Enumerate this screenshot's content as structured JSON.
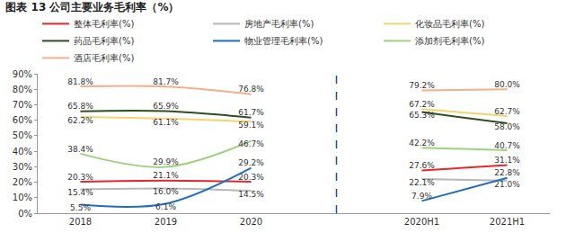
{
  "chart_data": {
    "type": "line",
    "title": "图表 13 公司主要业务毛利率（%）",
    "categories": [
      "2018",
      "2019",
      "2020",
      null,
      "2020H1",
      "2021H1"
    ],
    "series": [
      {
        "name": "整体毛利率(%)",
        "color": "#e8262b",
        "values": [
          20.3,
          21.1,
          20.3,
          null,
          27.6,
          31.1
        ],
        "value_labels": [
          "20.3%",
          "21.1%",
          "20.3%",
          null,
          "27.6%",
          "31.1%"
        ]
      },
      {
        "name": "房地产毛利率(%)",
        "color": "#b8b8b8",
        "values": [
          15.4,
          16.0,
          14.5,
          null,
          22.1,
          21.0
        ],
        "value_labels": [
          "15.4%",
          "16.0%",
          "14.5%",
          null,
          "22.1%",
          "21.0%"
        ]
      },
      {
        "name": "化妆品毛利率(%)",
        "color": "#f5d36e",
        "values": [
          62.2,
          61.1,
          59.1,
          null,
          67.2,
          62.7
        ],
        "value_labels": [
          "62.2%",
          "61.1%",
          "59.1%",
          null,
          "67.2%",
          "62.7%"
        ]
      },
      {
        "name": "药品毛利率(%)",
        "color": "#2e4f20",
        "values": [
          65.8,
          65.9,
          61.7,
          null,
          65.3,
          58.0
        ],
        "value_labels": [
          "65.8%",
          "65.9%",
          "61.7%",
          null,
          "65.3%",
          "58.0%"
        ]
      },
      {
        "name": "物业管理毛利率(%)",
        "color": "#1f6fbf",
        "values": [
          5.5,
          6.1,
          29.2,
          null,
          7.9,
          22.8
        ],
        "value_labels": [
          "5.5%",
          "6.1%",
          "29.2%",
          null,
          "7.9%",
          "22.8%"
        ]
      },
      {
        "name": "添加剂毛利率(%)",
        "color": "#9dd27f",
        "values": [
          38.4,
          29.9,
          46.7,
          null,
          42.2,
          40.7
        ],
        "value_labels": [
          "38.4%",
          "29.9%",
          "46.7%",
          null,
          "42.2%",
          "40.7%"
        ]
      },
      {
        "name": "酒店毛利率(%)",
        "color": "#f4b08a",
        "values": [
          81.8,
          81.7,
          76.8,
          null,
          79.2,
          80.0
        ],
        "value_labels": [
          "81.8%",
          "81.7%",
          "76.8%",
          null,
          "79.2%",
          "80.0%"
        ]
      }
    ],
    "ylim": [
      0,
      90
    ],
    "yticks": [
      {
        "value": 0,
        "label": "0%"
      },
      {
        "value": 10,
        "label": "10%"
      },
      {
        "value": 20,
        "label": "20%"
      },
      {
        "value": 30,
        "label": "30%"
      },
      {
        "value": 40,
        "label": "40%"
      },
      {
        "value": 50,
        "label": "50%"
      },
      {
        "value": 60,
        "label": "60%"
      },
      {
        "value": 70,
        "label": "70%"
      },
      {
        "value": 80,
        "label": "80%"
      },
      {
        "value": 90,
        "label": "90%"
      }
    ],
    "grid": false,
    "legend": "top",
    "data_labels": true
  }
}
